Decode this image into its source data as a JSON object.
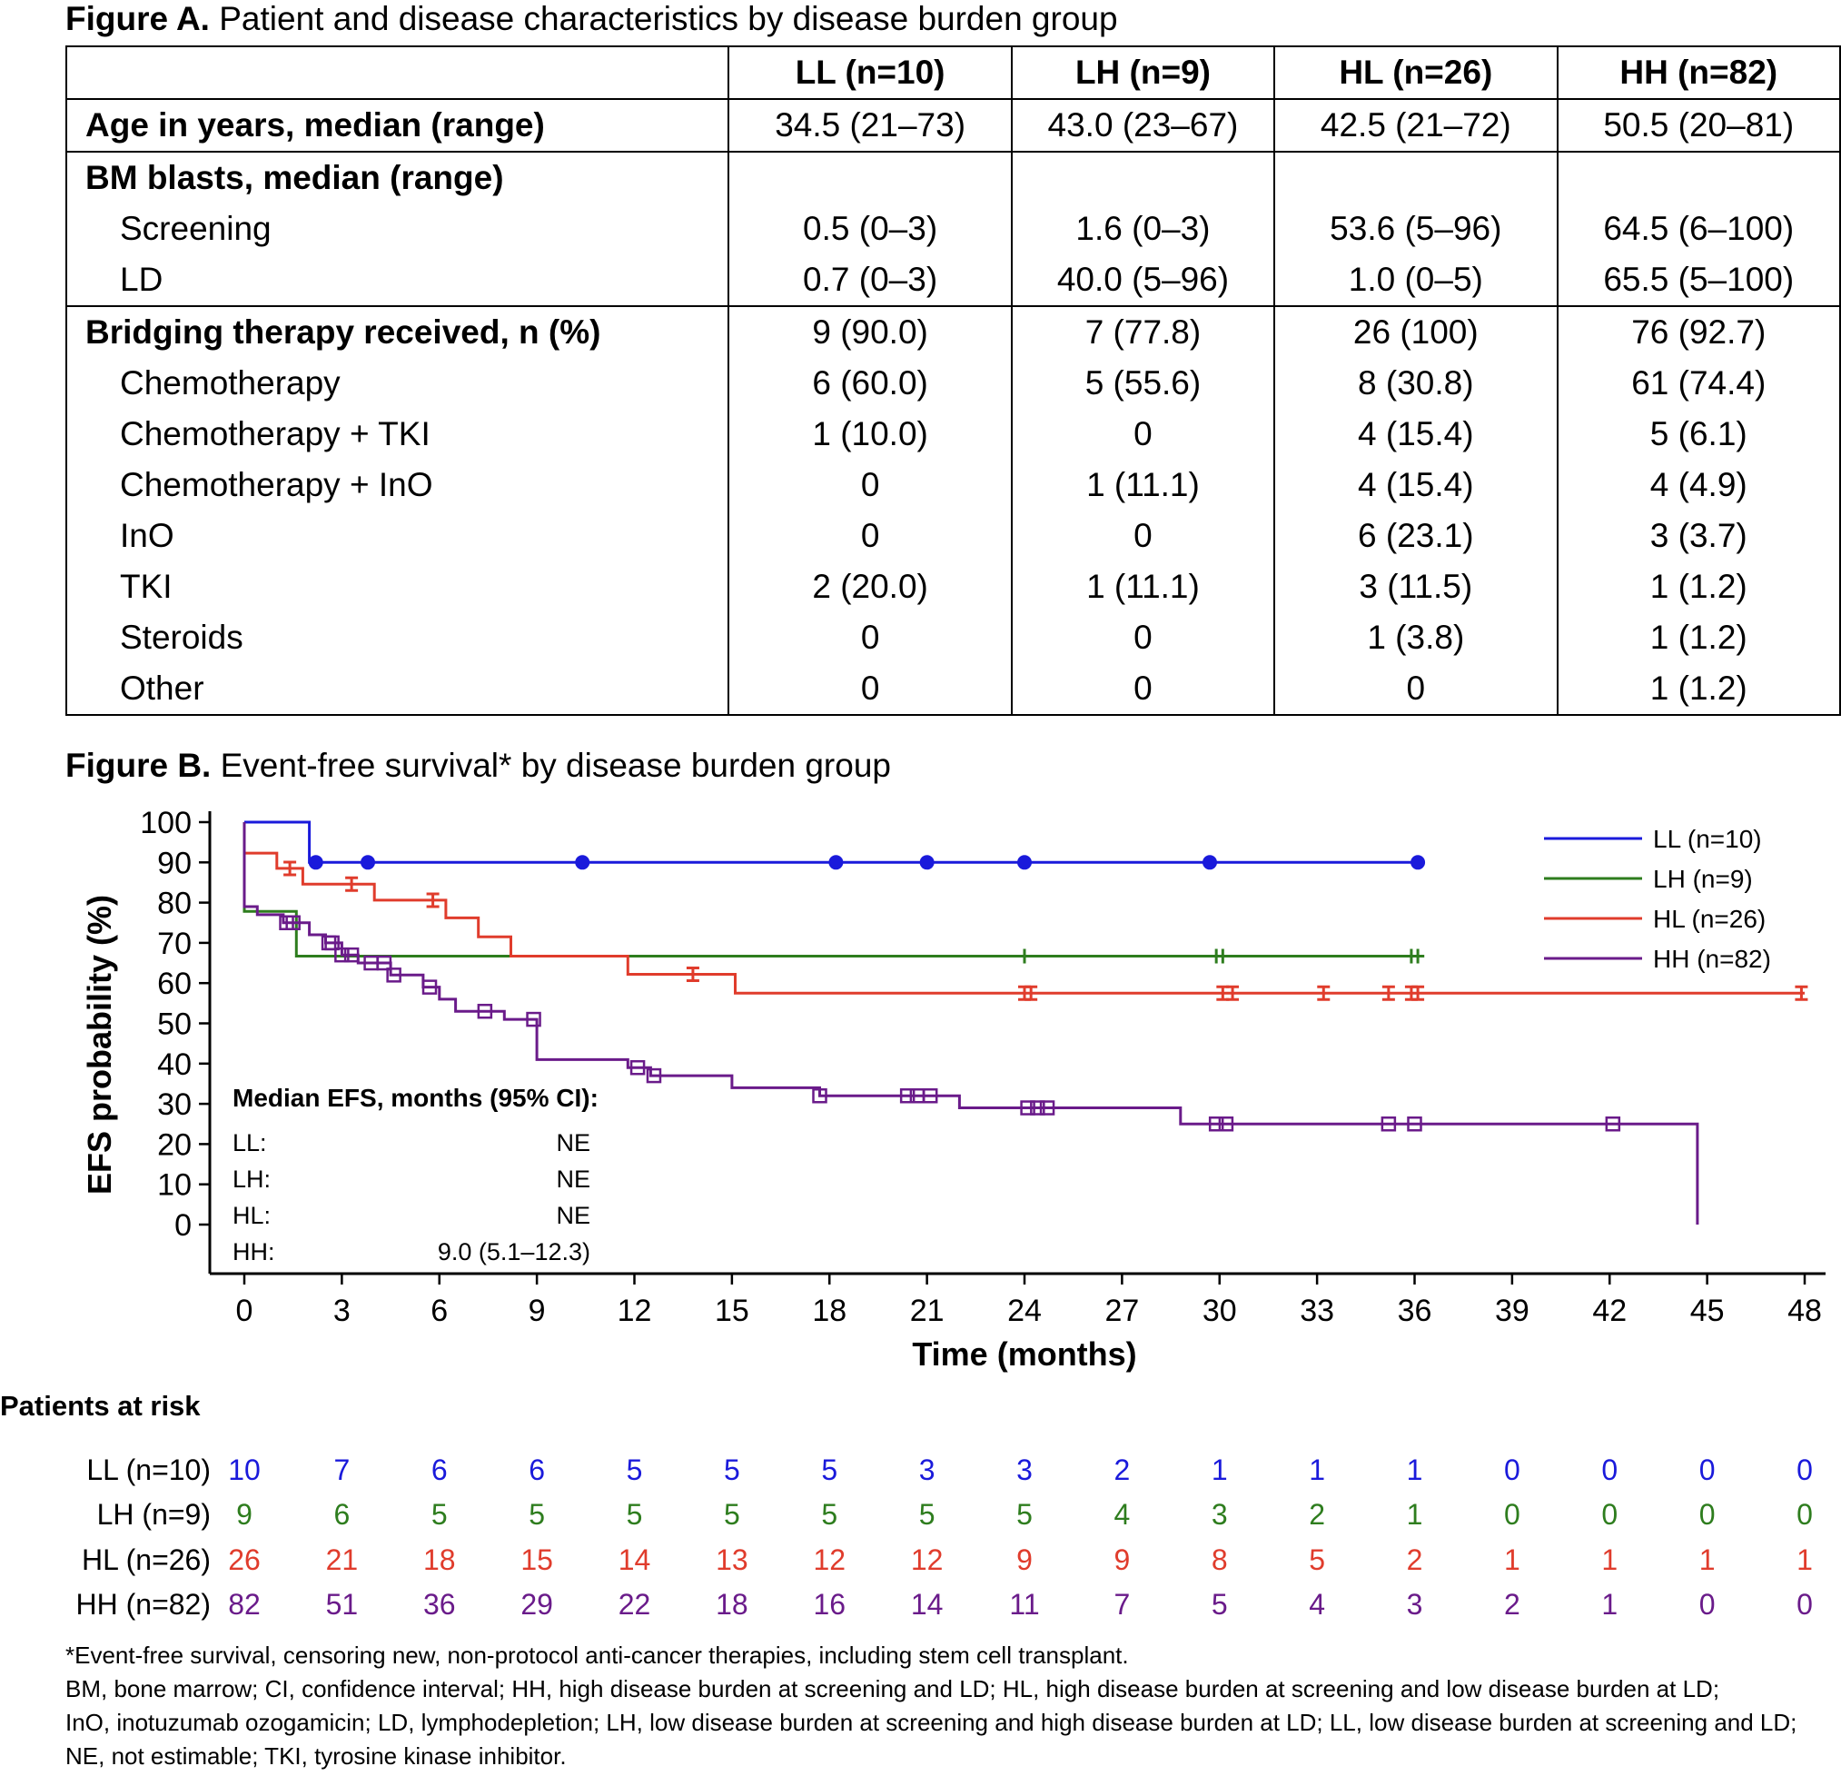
{
  "figure_a": {
    "title_bold": "Figure A.",
    "title_text": " Patient and disease characteristics by disease burden group",
    "columns": [
      "",
      "LL (n=10)",
      "LH (n=9)",
      "HL (n=26)",
      "HH (n=82)"
    ],
    "rows": [
      {
        "label": "Age in years, median (range)",
        "bold": true,
        "sub": false,
        "values": [
          "34.5 (21–73)",
          "43.0 (23–67)",
          "42.5 (21–72)",
          "50.5 (20–81)"
        ]
      },
      {
        "label": "BM blasts, median (range)",
        "bold": true,
        "sub": false,
        "values": [
          "",
          "",
          "",
          ""
        ]
      },
      {
        "label": "Screening",
        "bold": false,
        "sub": true,
        "values": [
          "0.5 (0–3)",
          "1.6 (0–3)",
          "53.6 (5–96)",
          "64.5 (6–100)"
        ]
      },
      {
        "label": "LD",
        "bold": false,
        "sub": true,
        "values": [
          "0.7 (0–3)",
          "40.0 (5–96)",
          "1.0 (0–5)",
          "65.5 (5–100)"
        ]
      },
      {
        "label": "Bridging therapy received, n (%)",
        "bold": true,
        "sub": false,
        "values": [
          "9 (90.0)",
          "7 (77.8)",
          "26 (100)",
          "76 (92.7)"
        ]
      },
      {
        "label": "Chemotherapy",
        "bold": false,
        "sub": true,
        "values": [
          "6 (60.0)",
          "5 (55.6)",
          "8 (30.8)",
          "61 (74.4)"
        ]
      },
      {
        "label": "Chemotherapy + TKI",
        "bold": false,
        "sub": true,
        "values": [
          "1 (10.0)",
          "0",
          "4 (15.4)",
          "5 (6.1)"
        ]
      },
      {
        "label": "Chemotherapy + InO",
        "bold": false,
        "sub": true,
        "values": [
          "0",
          "1 (11.1)",
          "4 (15.4)",
          "4 (4.9)"
        ]
      },
      {
        "label": "InO",
        "bold": false,
        "sub": true,
        "values": [
          "0",
          "0",
          "6 (23.1)",
          "3 (3.7)"
        ]
      },
      {
        "label": "TKI",
        "bold": false,
        "sub": true,
        "values": [
          "2 (20.0)",
          "1 (11.1)",
          "3 (11.5)",
          "1 (1.2)"
        ]
      },
      {
        "label": "Steroids",
        "bold": false,
        "sub": true,
        "values": [
          "0",
          "0",
          "1 (3.8)",
          "1 (1.2)"
        ]
      },
      {
        "label": "Other",
        "bold": false,
        "sub": true,
        "values": [
          "0",
          "0",
          "0",
          "1 (1.2)"
        ]
      }
    ]
  },
  "figure_b": {
    "title_bold": "Figure B.",
    "title_text": " Event-free survival* by disease burden group"
  },
  "chart_data": {
    "type": "line",
    "subtype": "kaplan-meier",
    "xlabel": "Time (months)",
    "ylabel": "EFS probability (%)",
    "xlim": [
      0,
      48
    ],
    "ylim": [
      0,
      100
    ],
    "xticks": [
      0,
      3,
      6,
      9,
      12,
      15,
      18,
      21,
      24,
      27,
      30,
      33,
      36,
      39,
      42,
      45,
      48
    ],
    "yticks": [
      0,
      10,
      20,
      30,
      40,
      50,
      60,
      70,
      80,
      90,
      100
    ],
    "grid": false,
    "legend_position": "top-right",
    "series": [
      {
        "name": "LL (n=10)",
        "color": "#1a1adb",
        "marker": "circle",
        "steps": [
          [
            0,
            100
          ],
          [
            2.0,
            100
          ],
          [
            2.0,
            90
          ],
          [
            36,
            90
          ]
        ],
        "censored": [
          2.2,
          3.8,
          10.4,
          18.2,
          21.0,
          24.0,
          29.7,
          36.1
        ]
      },
      {
        "name": "LH (n=9)",
        "color": "#2e7d1e",
        "marker": "tick",
        "steps": [
          [
            0,
            100
          ],
          [
            0,
            77.8
          ],
          [
            1.6,
            77.8
          ],
          [
            1.6,
            66.7
          ],
          [
            36.3,
            66.7
          ]
        ],
        "censored": [
          24.0,
          29.9,
          30.1,
          35.9,
          36.1
        ]
      },
      {
        "name": "HL (n=26)",
        "color": "#e03c2c",
        "marker": "I-bar",
        "steps": [
          [
            0,
            100
          ],
          [
            0,
            92.3
          ],
          [
            1.0,
            92.3
          ],
          [
            1.0,
            88.5
          ],
          [
            1.8,
            88.5
          ],
          [
            1.8,
            84.6
          ],
          [
            4.0,
            84.6
          ],
          [
            4.0,
            80.6
          ],
          [
            6.2,
            80.6
          ],
          [
            6.2,
            76.2
          ],
          [
            7.2,
            76.2
          ],
          [
            7.2,
            71.5
          ],
          [
            8.2,
            71.5
          ],
          [
            8.2,
            66.7
          ],
          [
            11.8,
            66.7
          ],
          [
            11.8,
            62.2
          ],
          [
            15.1,
            62.2
          ],
          [
            15.1,
            57.5
          ],
          [
            48,
            57.5
          ]
        ],
        "censored": [
          1.4,
          3.3,
          5.8,
          13.8,
          24.0,
          24.2,
          30.1,
          30.4,
          33.2,
          35.2,
          35.9,
          36.1,
          47.9
        ]
      },
      {
        "name": "HH (n=82)",
        "color": "#6a1b8a",
        "marker": "square",
        "steps": [
          [
            0,
            100
          ],
          [
            0,
            79
          ],
          [
            0.4,
            79
          ],
          [
            0.4,
            77
          ],
          [
            1.2,
            77
          ],
          [
            1.2,
            75
          ],
          [
            2.0,
            75
          ],
          [
            2.0,
            72
          ],
          [
            2.5,
            72
          ],
          [
            2.5,
            70
          ],
          [
            3.0,
            70
          ],
          [
            3.0,
            67
          ],
          [
            3.5,
            67
          ],
          [
            3.5,
            65
          ],
          [
            4.5,
            65
          ],
          [
            4.5,
            62
          ],
          [
            5.5,
            62
          ],
          [
            5.5,
            59
          ],
          [
            6.0,
            59
          ],
          [
            6.0,
            56
          ],
          [
            6.5,
            56
          ],
          [
            6.5,
            53
          ],
          [
            8.0,
            53
          ],
          [
            8.0,
            51
          ],
          [
            9.0,
            51
          ],
          [
            9.0,
            41
          ],
          [
            11.8,
            41
          ],
          [
            11.8,
            39
          ],
          [
            12.5,
            39
          ],
          [
            12.5,
            37
          ],
          [
            15.0,
            37
          ],
          [
            15.0,
            34
          ],
          [
            17.7,
            34
          ],
          [
            17.7,
            32
          ],
          [
            22.0,
            32
          ],
          [
            22.0,
            29
          ],
          [
            28.8,
            29
          ],
          [
            28.8,
            25
          ],
          [
            44.7,
            25
          ],
          [
            44.7,
            0
          ]
        ],
        "censored": [
          1.3,
          1.5,
          2.6,
          2.7,
          3.0,
          3.3,
          3.9,
          4.3,
          4.6,
          5.7,
          7.4,
          8.9,
          12.1,
          12.6,
          17.7,
          20.4,
          20.7,
          21.1,
          24.1,
          24.4,
          24.7,
          29.9,
          30.2,
          35.2,
          36.0,
          42.1
        ]
      }
    ],
    "annotation": {
      "title": "Median EFS, months (95% CI):",
      "rows": [
        {
          "label": "LL:",
          "value": "NE"
        },
        {
          "label": "LH:",
          "value": "NE"
        },
        {
          "label": "HL:",
          "value": "NE"
        },
        {
          "label": "HH:",
          "value": "9.0 (5.1–12.3)"
        }
      ]
    },
    "at_risk": {
      "title": "Patients at risk",
      "times": [
        0,
        3,
        6,
        9,
        12,
        15,
        18,
        21,
        24,
        27,
        30,
        33,
        36,
        39,
        42,
        45,
        48
      ],
      "rows": [
        {
          "label": "LL (n=10)",
          "color": "#1a1adb",
          "values": [
            10,
            7,
            6,
            6,
            5,
            5,
            5,
            3,
            3,
            2,
            1,
            1,
            1,
            0,
            0,
            0,
            0
          ]
        },
        {
          "label": "LH (n=9)",
          "color": "#2e7d1e",
          "values": [
            9,
            6,
            5,
            5,
            5,
            5,
            5,
            5,
            5,
            4,
            3,
            2,
            1,
            0,
            0,
            0,
            0
          ]
        },
        {
          "label": "HL (n=26)",
          "color": "#e03c2c",
          "values": [
            26,
            21,
            18,
            15,
            14,
            13,
            12,
            12,
            9,
            9,
            8,
            5,
            2,
            1,
            1,
            1,
            1
          ]
        },
        {
          "label": "HH (n=82)",
          "color": "#6a1b8a",
          "values": [
            82,
            51,
            36,
            29,
            22,
            18,
            16,
            14,
            11,
            7,
            5,
            4,
            3,
            2,
            1,
            0,
            0
          ]
        }
      ]
    }
  },
  "footnotes": [
    "*Event-free survival, censoring new, non-protocol anti-cancer therapies, including stem cell transplant.",
    "BM, bone marrow; CI, confidence interval; HH, high disease burden at screening and LD; HL, high disease burden at screening and low disease burden at LD;",
    "InO, inotuzumab ozogamicin; LD, lymphodepletion; LH, low disease burden at screening and high disease burden at LD; LL, low disease burden at screening and LD;",
    "NE, not estimable; TKI, tyrosine kinase inhibitor."
  ]
}
